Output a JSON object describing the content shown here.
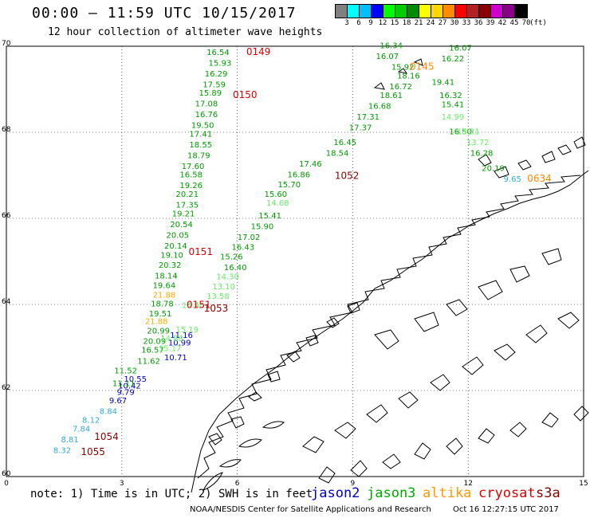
{
  "header": {
    "title": "00:00 – 11:59 UTC 10/15/2017",
    "subtitle": "12 hour collection of altimeter wave heights"
  },
  "colorbar": {
    "colors": [
      "#808080",
      "#00ffff",
      "#00bfff",
      "#0000ff",
      "#00ff00",
      "#00cd00",
      "#008b00",
      "#ffff00",
      "#ffd700",
      "#ff8c00",
      "#ff0000",
      "#b22222",
      "#8b0000",
      "#cd00cd",
      "#8b008b",
      "#000000"
    ],
    "labels": [
      "3",
      "6",
      "9",
      "12",
      "15",
      "18",
      "21",
      "24",
      "27",
      "30",
      "33",
      "36",
      "39",
      "42",
      "45",
      "70",
      "(ft)"
    ]
  },
  "map": {
    "lon_ticks": [
      "0",
      "3",
      "6",
      "9",
      "12",
      "15"
    ],
    "lat_ticks": [
      "60",
      "62",
      "64",
      "66",
      "68",
      "70"
    ],
    "lon_range": [
      0,
      15
    ],
    "lat_range": [
      60,
      70
    ],
    "grid": "dotted"
  },
  "chart_data": {
    "type": "scatter",
    "x_label": "",
    "y_label": "",
    "xlim": [
      0,
      15
    ],
    "ylim": [
      60,
      70
    ],
    "series": [
      {
        "name": "jason2",
        "color": "#0000cc",
        "points": [
          {
            "x": 4.55,
            "y": 63.22,
            "label": "11.16"
          },
          {
            "x": 4.5,
            "y": 63.05,
            "label": "10.99"
          },
          {
            "x": 4.4,
            "y": 62.7,
            "label": "10.71"
          },
          {
            "x": 3.35,
            "y": 62.2,
            "label": "10.55"
          },
          {
            "x": 3.2,
            "y": 62.05,
            "label": "10.42"
          },
          {
            "x": 3.1,
            "y": 61.9,
            "label": "9.79"
          },
          {
            "x": 2.9,
            "y": 61.7,
            "label": "9.67"
          }
        ]
      },
      {
        "name": "jason3",
        "color": "#009900",
        "points": [
          {
            "x": 5.5,
            "y": 69.8,
            "label": "16.54"
          },
          {
            "x": 5.55,
            "y": 69.55,
            "label": "15.93"
          },
          {
            "x": 5.45,
            "y": 69.3,
            "label": "16.29"
          },
          {
            "x": 5.4,
            "y": 69.05,
            "label": "17.59"
          },
          {
            "x": 5.3,
            "y": 68.85,
            "label": "15.89"
          },
          {
            "x": 5.2,
            "y": 68.6,
            "label": "17.08"
          },
          {
            "x": 5.2,
            "y": 68.35,
            "label": "16.76"
          },
          {
            "x": 5.1,
            "y": 68.1,
            "label": "19.50"
          },
          {
            "x": 5.05,
            "y": 67.9,
            "label": "17.41"
          },
          {
            "x": 5.05,
            "y": 67.65,
            "label": "18.55"
          },
          {
            "x": 5.0,
            "y": 67.4,
            "label": "18.79"
          },
          {
            "x": 4.85,
            "y": 67.15,
            "label": "17.60"
          },
          {
            "x": 4.8,
            "y": 66.95,
            "label": "16.58"
          },
          {
            "x": 4.8,
            "y": 66.7,
            "label": "19.26"
          },
          {
            "x": 4.7,
            "y": 66.5,
            "label": "20.21"
          },
          {
            "x": 4.7,
            "y": 66.25,
            "label": "17.35"
          },
          {
            "x": 4.6,
            "y": 66.05,
            "label": "19.21"
          },
          {
            "x": 4.55,
            "y": 65.8,
            "label": "20.54"
          },
          {
            "x": 4.45,
            "y": 65.55,
            "label": "20.05"
          },
          {
            "x": 4.4,
            "y": 65.3,
            "label": "20.14"
          },
          {
            "x": 4.3,
            "y": 65.08,
            "label": "19.10"
          },
          {
            "x": 4.25,
            "y": 64.85,
            "label": "20.32"
          },
          {
            "x": 4.15,
            "y": 64.6,
            "label": "18.14"
          },
          {
            "x": 4.1,
            "y": 64.38,
            "label": "19.64"
          },
          {
            "x": 4.05,
            "y": 63.95,
            "label": "18.78"
          },
          {
            "x": 4.0,
            "y": 63.72,
            "label": "19.51"
          },
          {
            "x": 3.95,
            "y": 63.32,
            "label": "20.99"
          },
          {
            "x": 3.85,
            "y": 63.08,
            "label": "20.09"
          },
          {
            "x": 3.8,
            "y": 62.88,
            "label": "16.57"
          },
          {
            "x": 3.7,
            "y": 62.62,
            "label": "11.62"
          },
          {
            "x": 3.1,
            "y": 62.4,
            "label": "11.52"
          },
          {
            "x": 3.05,
            "y": 62.1,
            "label": "11.11"
          },
          {
            "x": 10.0,
            "y": 69.95,
            "label": "16.34"
          },
          {
            "x": 9.9,
            "y": 69.7,
            "label": "16.07"
          },
          {
            "x": 10.3,
            "y": 69.45,
            "label": "15.92"
          },
          {
            "x": 10.45,
            "y": 69.25,
            "label": "18.16"
          },
          {
            "x": 10.25,
            "y": 69.0,
            "label": "16.72"
          },
          {
            "x": 10.0,
            "y": 68.8,
            "label": "18.61"
          },
          {
            "x": 9.7,
            "y": 68.55,
            "label": "16.68"
          },
          {
            "x": 9.4,
            "y": 68.3,
            "label": "17.31"
          },
          {
            "x": 9.2,
            "y": 68.05,
            "label": "17.37"
          },
          {
            "x": 8.8,
            "y": 67.7,
            "label": "16.45"
          },
          {
            "x": 8.6,
            "y": 67.45,
            "label": "18.54"
          },
          {
            "x": 7.9,
            "y": 67.2,
            "label": "17.46"
          },
          {
            "x": 7.6,
            "y": 66.95,
            "label": "16.86"
          },
          {
            "x": 7.35,
            "y": 66.72,
            "label": "15.70"
          },
          {
            "x": 7.0,
            "y": 66.5,
            "label": "15.60"
          },
          {
            "x": 6.85,
            "y": 66.0,
            "label": "15.41"
          },
          {
            "x": 6.65,
            "y": 65.75,
            "label": "15.90"
          },
          {
            "x": 6.3,
            "y": 65.5,
            "label": "17.02"
          },
          {
            "x": 6.15,
            "y": 65.27,
            "label": "16.43"
          },
          {
            "x": 5.85,
            "y": 65.05,
            "label": "15.26"
          },
          {
            "x": 5.95,
            "y": 64.8,
            "label": "16.40"
          },
          {
            "x": 11.8,
            "y": 69.9,
            "label": "16.07"
          },
          {
            "x": 11.6,
            "y": 69.65,
            "label": "16.22"
          },
          {
            "x": 11.35,
            "y": 69.1,
            "label": "19.41"
          },
          {
            "x": 11.55,
            "y": 68.8,
            "label": "16.32"
          },
          {
            "x": 11.6,
            "y": 68.58,
            "label": "15.41"
          },
          {
            "x": 11.8,
            "y": 67.95,
            "label": "16.50"
          },
          {
            "x": 12.35,
            "y": 67.45,
            "label": "16.28"
          },
          {
            "x": 12.65,
            "y": 67.1,
            "label": "20.19"
          }
        ]
      },
      {
        "name": "jason3 (light)",
        "color": "#66ee66",
        "points": [
          {
            "x": 7.05,
            "y": 66.3,
            "label": "14.68"
          },
          {
            "x": 5.75,
            "y": 64.58,
            "label": "14.30"
          },
          {
            "x": 5.65,
            "y": 64.35,
            "label": "13.10"
          },
          {
            "x": 5.5,
            "y": 64.13,
            "label": "13.58"
          },
          {
            "x": 4.85,
            "y": 63.92,
            "label": "13.40"
          },
          {
            "x": 4.7,
            "y": 63.35,
            "label": "15.19"
          },
          {
            "x": 4.3,
            "y": 63.15,
            "label": "14.88"
          },
          {
            "x": 4.25,
            "y": 62.92,
            "label": "15.17"
          },
          {
            "x": 11.6,
            "y": 68.3,
            "label": "14.99"
          },
          {
            "x": 12.0,
            "y": 67.95,
            "label": "13.31"
          },
          {
            "x": 12.25,
            "y": 67.7,
            "label": "13.72"
          }
        ]
      },
      {
        "name": "altika",
        "color": "#ffaa00",
        "points": [
          {
            "x": 4.1,
            "y": 64.16,
            "label": "21.88"
          },
          {
            "x": 3.9,
            "y": 63.55,
            "label": "21.88"
          }
        ]
      },
      {
        "name": "s3a",
        "color": "#33aadd",
        "points": [
          {
            "x": 2.65,
            "y": 61.45,
            "label": "8.84"
          },
          {
            "x": 2.2,
            "y": 61.25,
            "label": "8.12"
          },
          {
            "x": 1.95,
            "y": 61.05,
            "label": "7.84"
          },
          {
            "x": 1.65,
            "y": 60.8,
            "label": "8.81"
          },
          {
            "x": 1.45,
            "y": 60.55,
            "label": "8.32"
          },
          {
            "x": 13.15,
            "y": 66.85,
            "label": "9.65"
          }
        ]
      },
      {
        "name": "time labels",
        "color": "#dd0000",
        "points": [
          {
            "x": 6.55,
            "y": 69.8,
            "label": "0149"
          },
          {
            "x": 6.2,
            "y": 68.8,
            "label": "0150"
          },
          {
            "x": 5.05,
            "y": 65.15,
            "label": "0151"
          },
          {
            "x": 5.0,
            "y": 63.92,
            "label": "0151"
          }
        ]
      },
      {
        "name": "time labels (dark)",
        "color": "#880000",
        "points": [
          {
            "x": 8.85,
            "y": 66.92,
            "label": "1052"
          },
          {
            "x": 5.45,
            "y": 63.83,
            "label": "1053"
          },
          {
            "x": 2.6,
            "y": 60.85,
            "label": "1054"
          },
          {
            "x": 2.25,
            "y": 60.5,
            "label": "1055"
          }
        ]
      },
      {
        "name": "time labels (orange)",
        "color": "#ff8800",
        "points": [
          {
            "x": 10.8,
            "y": 69.45,
            "label": "0145"
          },
          {
            "x": 13.85,
            "y": 66.85,
            "label": "0634"
          }
        ]
      }
    ]
  },
  "footer": {
    "note": "note: 1) Time is in UTC; 2) SWH is in feet",
    "satellites": [
      {
        "name": "jason2",
        "color": "#0000cc"
      },
      {
        "name": "jason3",
        "color": "#00aa00"
      },
      {
        "name": "altika",
        "color": "#ff9900"
      },
      {
        "name": "cryosat",
        "color": "#dd0000"
      },
      {
        "name": "s3a",
        "color": "#880000"
      }
    ],
    "credit": "NOAA/NESDIS Center for Satellite Applications and Research",
    "timestamp": "Oct 16 12:27:15 UTC 2017"
  }
}
